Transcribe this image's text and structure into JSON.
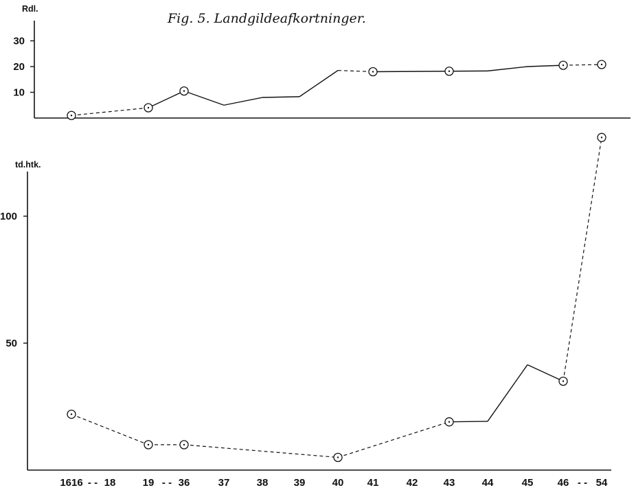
{
  "figure": {
    "title": "Fig. 5. Landgildeafkortninger."
  },
  "x_axis": {
    "tick_labels": [
      "1616",
      "18",
      "19",
      "36",
      "37",
      "38",
      "39",
      "40",
      "41",
      "42",
      "43",
      "44",
      "45",
      "46",
      "54"
    ],
    "dash_marks": [
      "- -",
      "- -",
      "- -"
    ]
  },
  "chart_data": [
    {
      "type": "line",
      "ylabel": "Rdl.",
      "ylim": [
        0,
        40
      ],
      "y_ticks": [
        10,
        20,
        30
      ],
      "grid": false,
      "points": [
        {
          "x": "1616",
          "y": 1,
          "marker": "circle"
        },
        {
          "x": "19",
          "y": 4,
          "marker": "circle"
        },
        {
          "x": "36",
          "y": 10.5,
          "marker": "circle"
        },
        {
          "x": "37",
          "y": 5,
          "marker": "none"
        },
        {
          "x": "38",
          "y": 8,
          "marker": "none"
        },
        {
          "x": "39",
          "y": 8.3,
          "marker": "none"
        },
        {
          "x": "40",
          "y": 18.5,
          "marker": "none"
        },
        {
          "x": "41",
          "y": 18,
          "marker": "circle"
        },
        {
          "x": "43",
          "y": 18.2,
          "marker": "circle"
        },
        {
          "x": "44",
          "y": 18.3,
          "marker": "none"
        },
        {
          "x": "45",
          "y": 20,
          "marker": "none"
        },
        {
          "x": "46",
          "y": 20.5,
          "marker": "circle"
        },
        {
          "x": "54",
          "y": 20.8,
          "marker": "circle"
        }
      ],
      "segment_styles": [
        "dashed",
        "solid",
        "solid",
        "solid",
        "solid",
        "solid",
        "dashed",
        "solid",
        "solid",
        "solid",
        "solid",
        "dashed"
      ]
    },
    {
      "type": "line",
      "ylabel": "td.htk.",
      "ylim": [
        0,
        115
      ],
      "y_ticks": [
        50,
        100
      ],
      "grid": false,
      "points": [
        {
          "x": "1616",
          "y": 22,
          "marker": "circle"
        },
        {
          "x": "19",
          "y": 10,
          "marker": "circle"
        },
        {
          "x": "36",
          "y": 10,
          "marker": "circle"
        },
        {
          "x": "40",
          "y": 5,
          "marker": "circle"
        },
        {
          "x": "43",
          "y": 19,
          "marker": "circle"
        },
        {
          "x": "44",
          "y": 19.2,
          "marker": "none"
        },
        {
          "x": "45",
          "y": 41.5,
          "marker": "none"
        },
        {
          "x": "46",
          "y": 35,
          "marker": "circle"
        },
        {
          "x": "54",
          "y": 131,
          "marker": "circle"
        }
      ],
      "segment_styles": [
        "dashed",
        "dashed",
        "dashed",
        "dashed",
        "solid",
        "solid",
        "solid",
        "dashed"
      ]
    }
  ]
}
